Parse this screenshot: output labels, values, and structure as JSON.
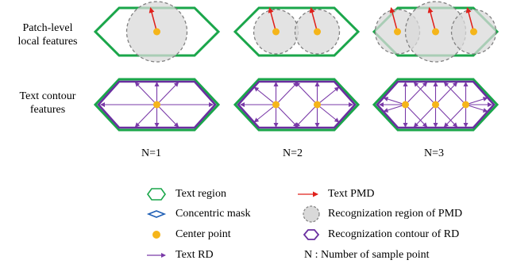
{
  "row_labels": {
    "patch_line1": "Patch-level",
    "patch_line2": "local features",
    "contour_line1": "Text contour",
    "contour_line2": "features"
  },
  "columns": [
    {
      "label": "N=1",
      "samples": 1
    },
    {
      "label": "N=2",
      "samples": 2
    },
    {
      "label": "N=3",
      "samples": 3
    }
  ],
  "legend": [
    {
      "key": "text_region",
      "label": "Text region"
    },
    {
      "key": "concentric_mask",
      "label": "Concentric mask"
    },
    {
      "key": "center_point",
      "label": "Center point"
    },
    {
      "key": "text_rd",
      "label": "Text RD"
    },
    {
      "key": "text_pmd",
      "label": "Text PMD"
    },
    {
      "key": "pmd_region",
      "label": "Recognization region of PMD"
    },
    {
      "key": "rd_contour",
      "label": "Recognization contour of RD"
    },
    {
      "key": "n_def",
      "label": "N :  Number of sample point"
    }
  ],
  "colors": {
    "region": "#1aa64a",
    "mask": "#1f5fb5",
    "contour": "#6a2fa0",
    "arrow": "#7a3aa8",
    "center": "#f5b51a",
    "pmd": "#e0201b",
    "circle_fill": "#d9d9d9",
    "circle_stroke": "#808080"
  }
}
